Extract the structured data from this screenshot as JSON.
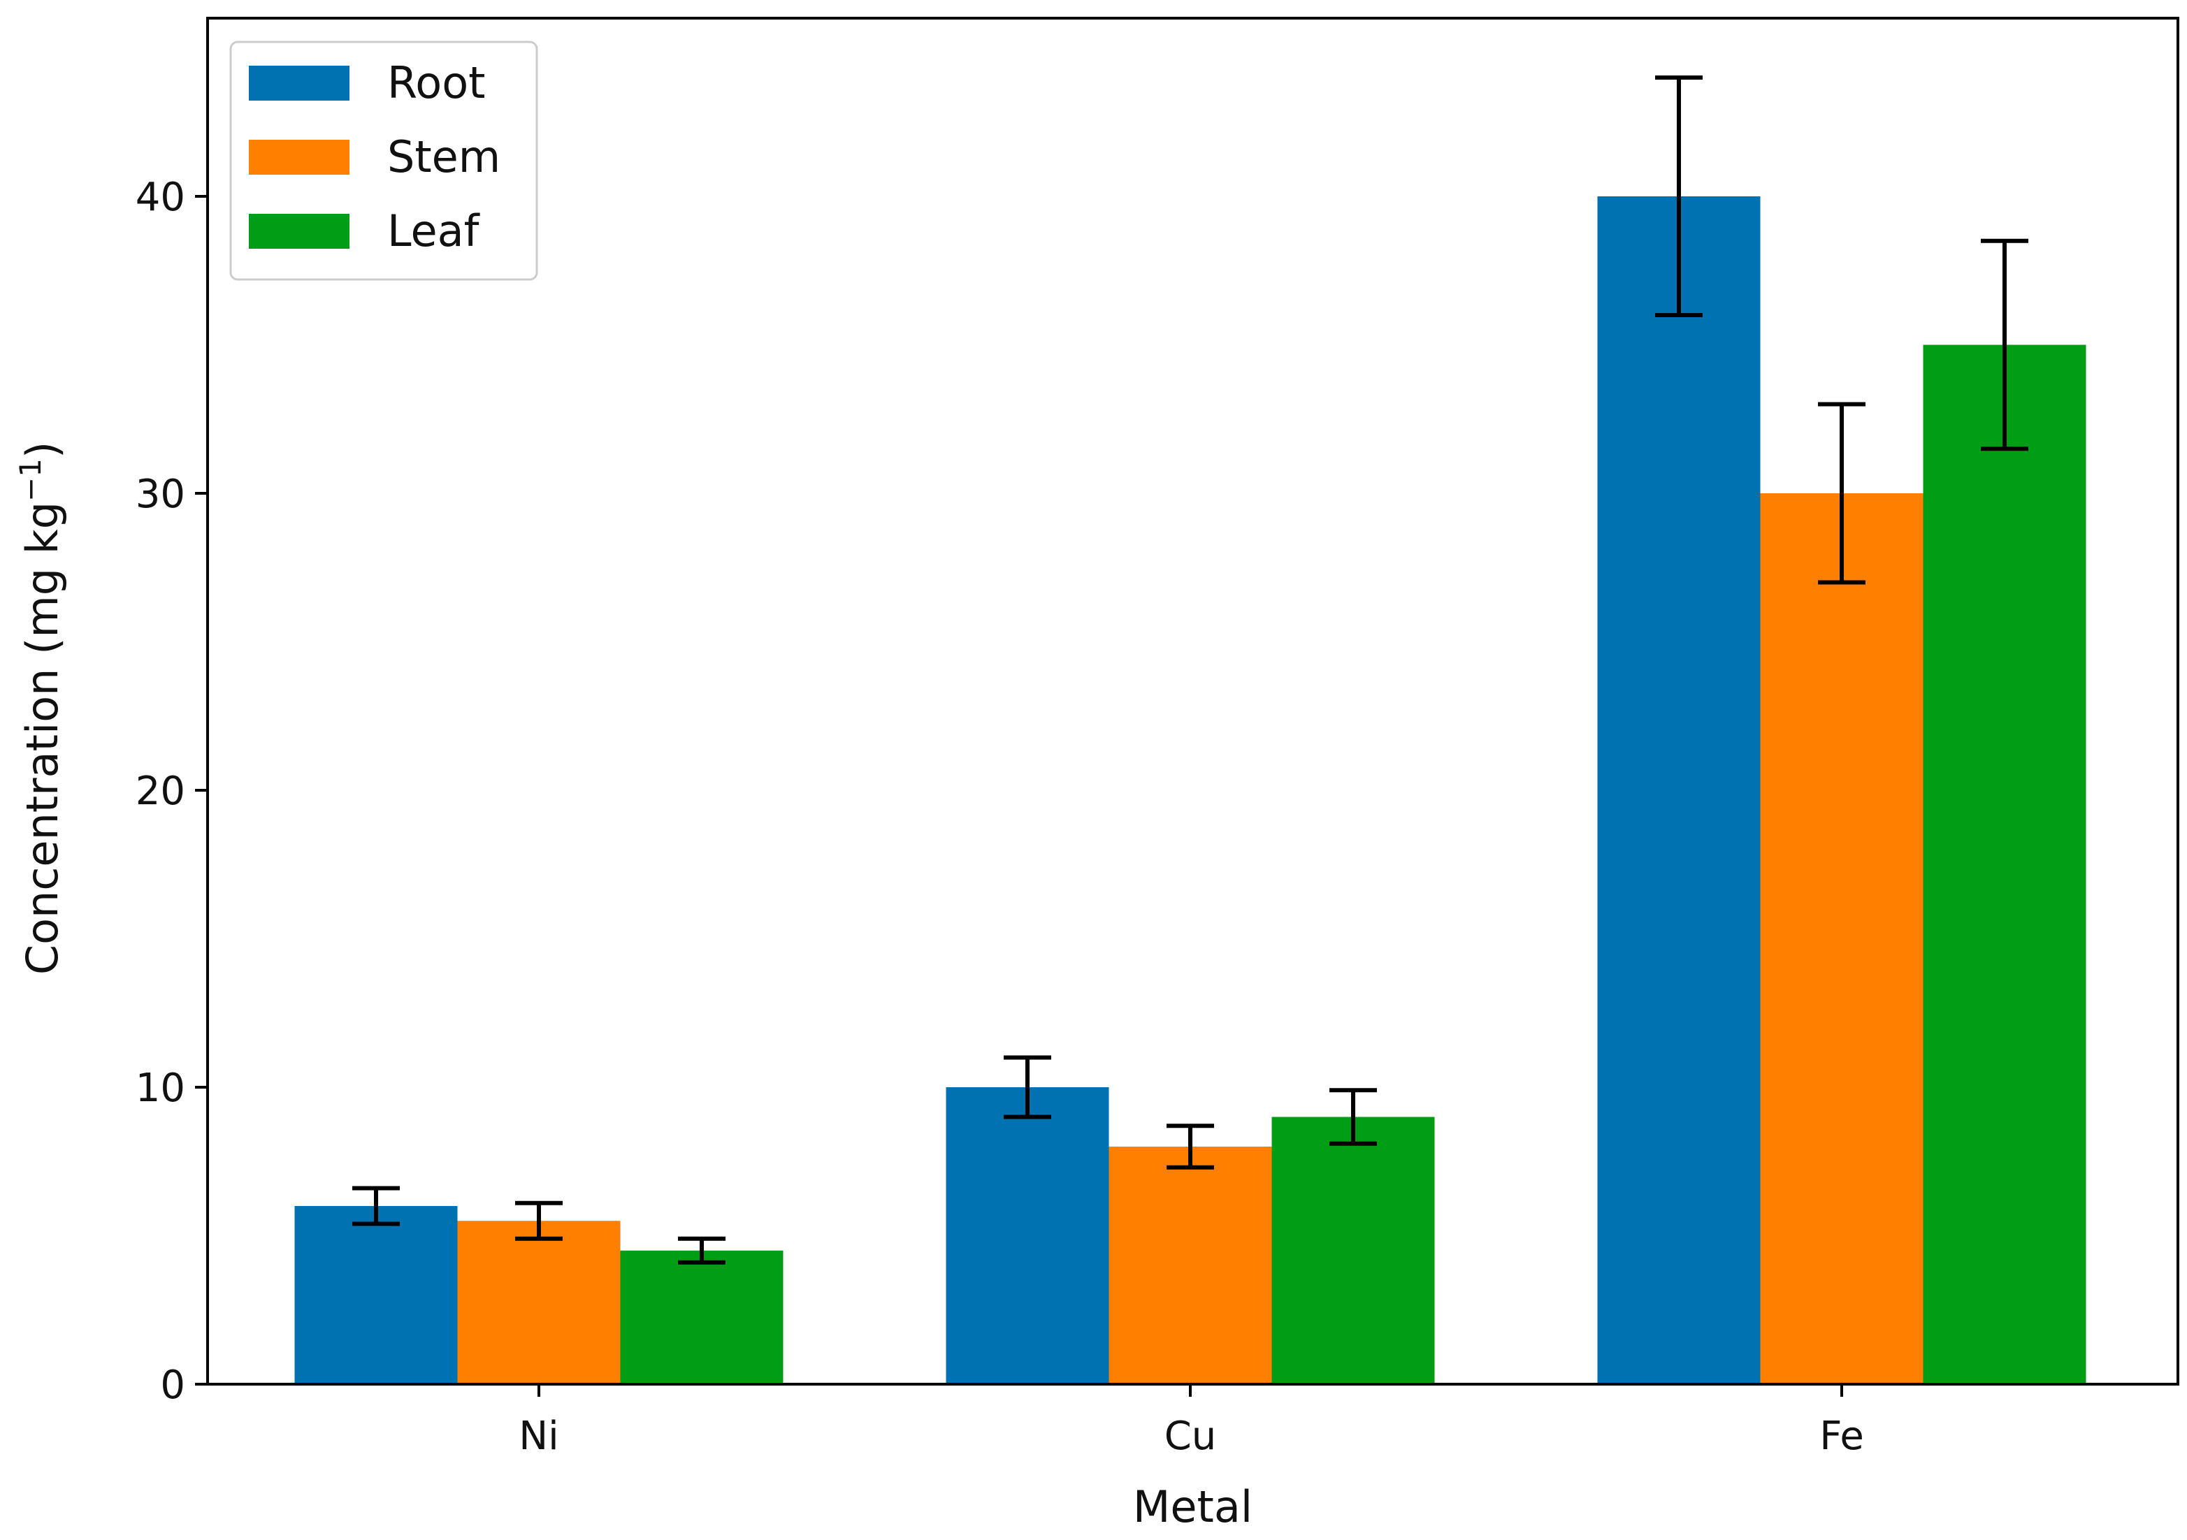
{
  "chart_data": {
    "type": "bar",
    "title": "",
    "xlabel": "Metal",
    "ylabel_main": "Concentration (mg kg",
    "ylabel_sup": "−1",
    "ylabel_close": ")",
    "categories": [
      "Ni",
      "Cu",
      "Fe"
    ],
    "ylim": [
      0,
      46
    ],
    "yticks": [
      0,
      10,
      20,
      30,
      40
    ],
    "legend_position": "top-left",
    "series": [
      {
        "name": "Root",
        "color": "#0072b2",
        "values": [
          6.0,
          10.0,
          40.0
        ],
        "errors": [
          0.6,
          1.0,
          4.0
        ]
      },
      {
        "name": "Stem",
        "color": "#ff7f00",
        "values": [
          5.5,
          8.0,
          30.0
        ],
        "errors": [
          0.6,
          0.7,
          3.0
        ]
      },
      {
        "name": "Leaf",
        "color": "#009e14",
        "values": [
          4.5,
          9.0,
          35.0
        ],
        "errors": [
          0.4,
          0.9,
          3.5
        ]
      }
    ]
  }
}
